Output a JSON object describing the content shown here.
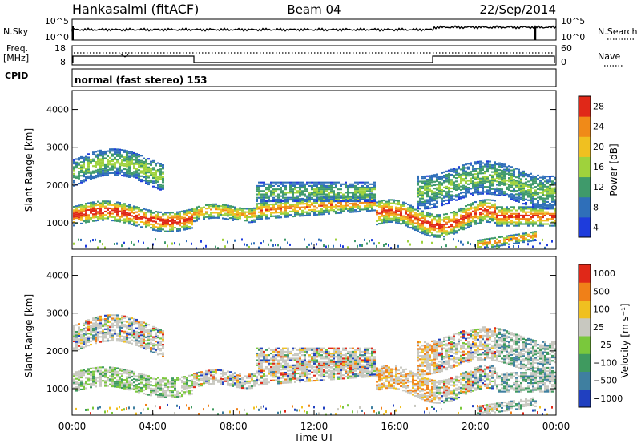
{
  "header": {
    "station": "Hankasalmi (fitACF)",
    "beam": "Beam 04",
    "date": "22/Sep/2014"
  },
  "strip": {
    "nsky_label": "N.Sky",
    "nsearch_label": "N.Search",
    "nsky_ticks": [
      "10^5",
      "10^0"
    ],
    "nsearch_ticks": [
      "10^5",
      "10^0"
    ],
    "freq_label_line1": "Freq.",
    "freq_label_line2": "[MHz]",
    "freq_ticks": [
      "18",
      "8"
    ],
    "nave_label": "Nave",
    "nave_ticks": [
      "60",
      "0"
    ],
    "cpid_label": "CPID",
    "cpid_value": "normal (fast stereo) 153"
  },
  "chart_data": [
    {
      "type": "heatmap",
      "name": "power-panel",
      "xlabel": "",
      "ylabel": "Slant Range [km]",
      "yticks": [
        "1000",
        "2000",
        "3000",
        "4000"
      ],
      "ylim": [
        300,
        4500
      ],
      "colorbar": {
        "label": "Power [dB]",
        "ticks": [
          "4",
          "8",
          "12",
          "16",
          "20",
          "24",
          "28"
        ],
        "colors": [
          "#1e3cdc",
          "#2f6fb9",
          "#3f9a6b",
          "#9fd23c",
          "#f0c020",
          "#f08a18",
          "#e02818"
        ]
      }
    },
    {
      "type": "heatmap",
      "name": "velocity-panel",
      "xlabel": "Time UT",
      "ylabel": "Slant Range [km]",
      "yticks": [
        "1000",
        "2000",
        "3000",
        "4000"
      ],
      "ylim": [
        300,
        4500
      ],
      "xticks": [
        "00:00",
        "04:00",
        "08:00",
        "12:00",
        "16:00",
        "20:00",
        "00:00"
      ],
      "colorbar": {
        "label": "Velocity [m s⁻¹]",
        "ticks": [
          "1000",
          "500",
          "100",
          "25",
          "−25",
          "−100",
          "−500",
          "−1000"
        ],
        "colors": [
          "#2040c0",
          "#3f7fa0",
          "#3f9a5f",
          "#7ac83c",
          "#c8c8c0",
          "#f0c020",
          "#f08018",
          "#e02818"
        ]
      }
    }
  ]
}
